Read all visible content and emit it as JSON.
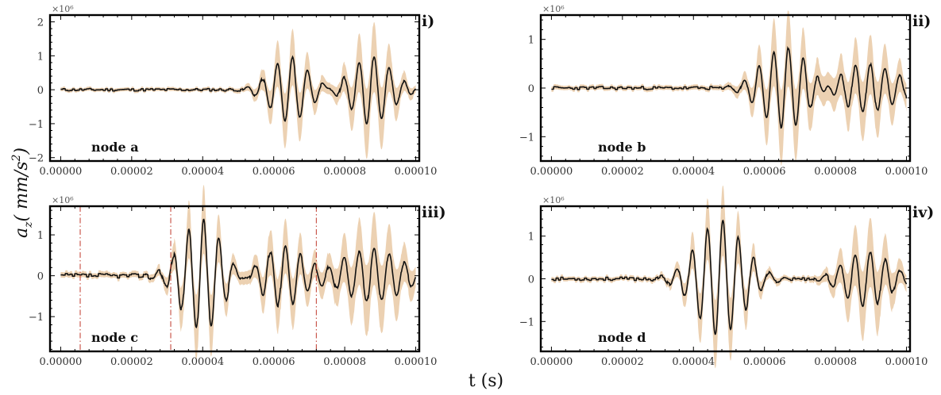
{
  "figure": {
    "ylabel": "a",
    "ylabel_sub": "z",
    "ylabel_units": "( mm/s",
    "ylabel_sup": "2",
    "ylabel_close": ")",
    "xlabel": "t (s)"
  },
  "colors": {
    "line": "#111111",
    "band": "#e9c9a4",
    "vline": "#c0392b",
    "axis": "#000000"
  },
  "chart_data": [
    {
      "type": "line",
      "panel": "i)",
      "node": "node a",
      "exponent": "×10⁶",
      "xlim": [
        -3e-06,
        0.000101
      ],
      "ylim": [
        -2.1,
        2.2
      ],
      "yticks": [
        -2,
        -1,
        0,
        1,
        2
      ],
      "ytick_labels": [
        "−2",
        "−1",
        "0",
        "1",
        "2"
      ],
      "xticks": [
        0,
        2e-05,
        4e-05,
        6e-05,
        8e-05,
        0.0001
      ],
      "xtick_labels": [
        "0.00000",
        "0.00002",
        "0.00004",
        "0.00006",
        "0.00008",
        "0.00010"
      ],
      "packets": [
        {
          "center": 6.45e-05,
          "amp": 0.95,
          "sigma": 5.2e-06,
          "freq": 235000,
          "band": 0.45
        },
        {
          "center": 8.75e-05,
          "amp": 1.0,
          "sigma": 5.5e-06,
          "freq": 235000,
          "band": 0.65
        }
      ],
      "noise": 0.05,
      "vlines": [],
      "seed": 11
    },
    {
      "type": "line",
      "panel": "ii)",
      "node": "node b",
      "exponent": "×10⁶",
      "xlim": [
        -3e-06,
        0.000101
      ],
      "ylim": [
        -1.5,
        1.5
      ],
      "yticks": [
        -1,
        0,
        1
      ],
      "ytick_labels": [
        "−1",
        "0",
        "1"
      ],
      "xticks": [
        0,
        2e-05,
        4e-05,
        6e-05,
        8e-05,
        0.0001
      ],
      "xtick_labels": [
        "0.00000",
        "0.00002",
        "0.00004",
        "0.00006",
        "0.00008",
        "0.00010"
      ],
      "packets": [
        {
          "center": 6.6e-05,
          "amp": 0.85,
          "sigma": 6.5e-06,
          "freq": 240000,
          "band": 0.45
        },
        {
          "center": 8.9e-05,
          "amp": 0.5,
          "sigma": 8e-06,
          "freq": 240000,
          "band": 0.4
        }
      ],
      "noise": 0.04,
      "vlines": [],
      "seed": 23
    },
    {
      "type": "line",
      "panel": "iii)",
      "node": "node c",
      "exponent": "×10⁶",
      "xlim": [
        -3e-06,
        0.000101
      ],
      "ylim": [
        -1.85,
        1.7
      ],
      "yticks": [
        -1,
        0,
        1
      ],
      "ytick_labels": [
        "−1",
        "0",
        "1"
      ],
      "xticks": [
        0,
        2e-05,
        4e-05,
        6e-05,
        8e-05,
        0.0001
      ],
      "xtick_labels": [
        "0.00000",
        "0.00002",
        "0.00004",
        "0.00006",
        "0.00008",
        "0.00010"
      ],
      "packets": [
        {
          "center": 3.95e-05,
          "amp": 1.35,
          "sigma": 5.5e-06,
          "freq": 235000,
          "band": 0.3
        },
        {
          "center": 6.25e-05,
          "amp": 0.75,
          "sigma": 5.5e-06,
          "freq": 235000,
          "band": 0.35
        },
        {
          "center": 8.75e-05,
          "amp": 0.65,
          "sigma": 8e-06,
          "freq": 235000,
          "band": 0.6
        }
      ],
      "noise": 0.07,
      "vlines": [
        5.5e-06,
        3.1e-05,
        7.2e-05
      ],
      "seed": 37
    },
    {
      "type": "line",
      "panel": "iv)",
      "node": "node d",
      "exponent": "×10⁶",
      "xlim": [
        -3e-06,
        0.000101
      ],
      "ylim": [
        -1.7,
        1.7
      ],
      "yticks": [
        -1,
        0,
        1
      ],
      "ytick_labels": [
        "−1",
        "0",
        "1"
      ],
      "xticks": [
        0,
        2e-05,
        4e-05,
        6e-05,
        8e-05,
        0.0001
      ],
      "xtick_labels": [
        "0.00000",
        "0.00002",
        "0.00004",
        "0.00006",
        "0.00008",
        "0.00010"
      ],
      "packets": [
        {
          "center": 4.75e-05,
          "amp": 1.35,
          "sigma": 6.5e-06,
          "freq": 230000,
          "band": 0.3
        },
        {
          "center": 8.9e-05,
          "amp": 0.65,
          "sigma": 6e-06,
          "freq": 235000,
          "band": 0.55
        }
      ],
      "noise": 0.05,
      "vlines": [],
      "seed": 53
    }
  ]
}
